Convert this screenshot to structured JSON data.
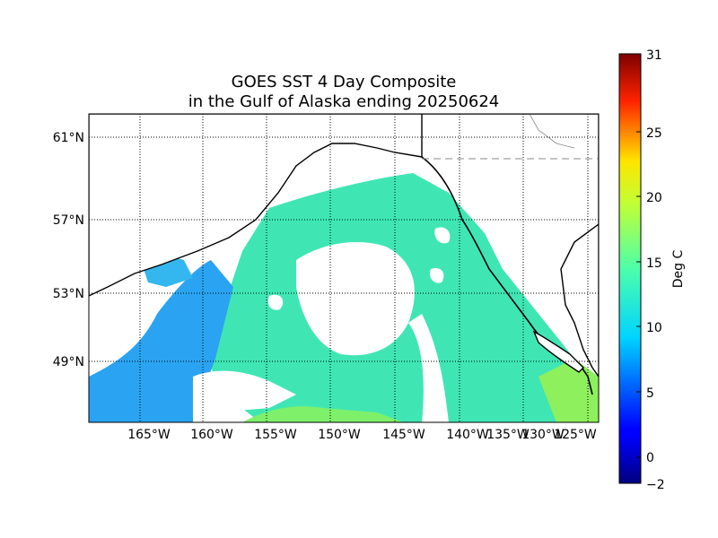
{
  "title": {
    "line1": "GOES SST 4 Day Composite",
    "line2": "in the Gulf of Alaska ending 20250624"
  },
  "map": {
    "lat_labels": [
      "61°N",
      "57°N",
      "53°N",
      "49°N"
    ],
    "lon_labels": [
      "165°W",
      "160°W",
      "155°W",
      "150°W",
      "145°W",
      "140°W",
      "135°W",
      "130°W",
      "125°W"
    ],
    "ocean_color": "#40e0b0",
    "cloud_color": "#ffffff",
    "cold_color": "#1e90ff",
    "land_outline": "#000000"
  },
  "colorbar": {
    "label": "Deg C",
    "ticks": [
      "31",
      "25",
      "20",
      "15",
      "10",
      "5",
      "0",
      "−2"
    ],
    "min": -2,
    "max": 31,
    "colormap": "jet"
  }
}
